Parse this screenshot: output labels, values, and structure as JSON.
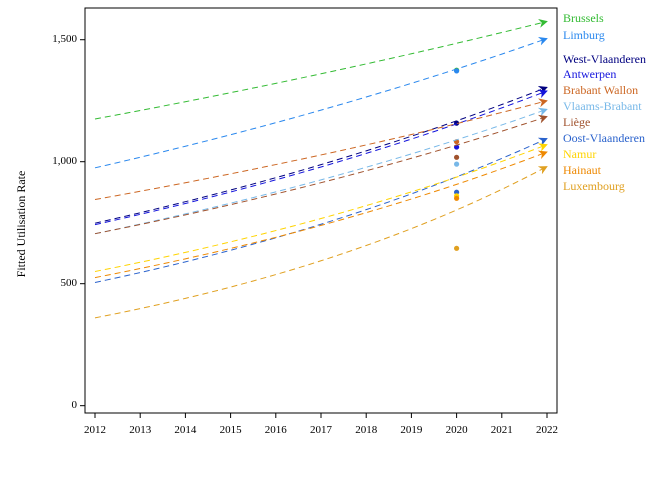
{
  "chart_data": {
    "type": "line",
    "title": "",
    "xlabel": "",
    "ylabel": "Fitted Utilisation Rate",
    "xlim": [
      2012,
      2022
    ],
    "ylim": [
      -30,
      1630
    ],
    "x_ticks": [
      2012,
      2013,
      2014,
      2015,
      2016,
      2017,
      2018,
      2019,
      2020,
      2021,
      2022
    ],
    "y_ticks": [
      0,
      500,
      1000,
      1500
    ],
    "y_tick_labels": [
      "0",
      "500",
      "1,000",
      "1,500"
    ],
    "grid": false,
    "legend_position": "right",
    "line_style": "dashed",
    "series": [
      {
        "name": "Brussels",
        "color": "#33bb33",
        "start": [
          2012,
          1175
        ],
        "end": [
          2022,
          1575
        ],
        "point": [
          2020,
          1375
        ]
      },
      {
        "name": "Limburg",
        "color": "#2a88ee",
        "start": [
          2012,
          975
        ],
        "end": [
          2022,
          1505
        ],
        "point": [
          2020,
          1372
        ]
      },
      {
        "name": "West-Vlaanderen",
        "color": "#000080",
        "start": [
          2012,
          748
        ],
        "end": [
          2022,
          1305
        ],
        "point": [
          2020,
          1158
        ]
      },
      {
        "name": "Antwerpen",
        "color": "#1515dd",
        "start": [
          2012,
          742
        ],
        "end": [
          2022,
          1290
        ],
        "point": [
          2020,
          1060
        ]
      },
      {
        "name": "Brabant Wallon",
        "color": "#cc6622",
        "start": [
          2012,
          845
        ],
        "end": [
          2022,
          1250
        ],
        "point": [
          2020,
          1082
        ]
      },
      {
        "name": "Vlaams-Brabant",
        "color": "#77b8e8",
        "start": [
          2012,
          705
        ],
        "end": [
          2022,
          1215
        ],
        "point": [
          2020,
          990
        ]
      },
      {
        "name": "Liège",
        "color": "#a0522d",
        "start": [
          2012,
          705
        ],
        "end": [
          2022,
          1185
        ],
        "point": [
          2020,
          1018
        ]
      },
      {
        "name": "Oost-Vlaanderen",
        "color": "#2a62cc",
        "start": [
          2012,
          505
        ],
        "end": [
          2022,
          1095
        ],
        "point": [
          2020,
          875
        ]
      },
      {
        "name": "Namur",
        "color": "#ffd400",
        "start": [
          2012,
          550
        ],
        "end": [
          2022,
          1070
        ],
        "point": [
          2020,
          860
        ]
      },
      {
        "name": "Hainaut",
        "color": "#ee8800",
        "start": [
          2012,
          525
        ],
        "end": [
          2022,
          1040
        ],
        "point": [
          2020,
          850
        ]
      },
      {
        "name": "Luxembourg",
        "color": "#e0a020",
        "start": [
          2012,
          360
        ],
        "end": [
          2022,
          980
        ],
        "point": [
          2020,
          645
        ]
      }
    ]
  }
}
